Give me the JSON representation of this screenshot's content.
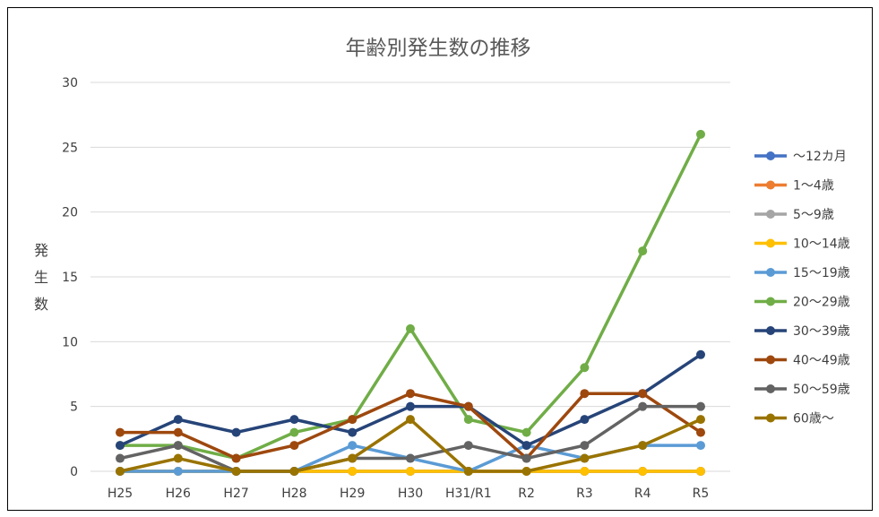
{
  "chart_data": {
    "type": "line",
    "title": "年齢別発生数の推移",
    "ylabel": "発生数",
    "xlabel": "",
    "ylim": [
      0,
      30
    ],
    "yticks": [
      0,
      5,
      10,
      15,
      20,
      25,
      30
    ],
    "grid": true,
    "legend": "right",
    "categories": [
      "H25",
      "H26",
      "H27",
      "H28",
      "H29",
      "H30",
      "H31/R1",
      "R2",
      "R3",
      "R4",
      "R5"
    ],
    "series": [
      {
        "name": "～12カ月",
        "color": "#4472C4",
        "values": [
          0,
          0,
          0,
          0,
          0,
          0,
          0,
          0,
          0,
          0,
          0
        ]
      },
      {
        "name": "1～4歳",
        "color": "#ED7D31",
        "values": [
          0,
          0,
          0,
          0,
          0,
          0,
          0,
          0,
          0,
          0,
          0
        ]
      },
      {
        "name": "5～9歳",
        "color": "#A5A5A5",
        "values": [
          0,
          0,
          0,
          0,
          0,
          0,
          0,
          0,
          0,
          0,
          0
        ]
      },
      {
        "name": "10～14歳",
        "color": "#FFC000",
        "values": [
          0,
          0,
          0,
          0,
          0,
          0,
          0,
          0,
          0,
          0,
          0
        ]
      },
      {
        "name": "15～19歳",
        "color": "#5B9BD5",
        "values": [
          0,
          0,
          0,
          0,
          2,
          1,
          0,
          2,
          1,
          2,
          2
        ]
      },
      {
        "name": "20～29歳",
        "color": "#70AD47",
        "values": [
          2,
          2,
          1,
          3,
          4,
          11,
          4,
          3,
          8,
          17,
          26
        ]
      },
      {
        "name": "30～39歳",
        "color": "#264478",
        "values": [
          2,
          4,
          3,
          4,
          3,
          5,
          5,
          2,
          4,
          6,
          9
        ]
      },
      {
        "name": "40～49歳",
        "color": "#9E480E",
        "values": [
          3,
          3,
          1,
          2,
          4,
          6,
          5,
          1,
          6,
          6,
          3
        ]
      },
      {
        "name": "50～59歳",
        "color": "#636363",
        "values": [
          1,
          2,
          0,
          0,
          1,
          1,
          2,
          1,
          2,
          5,
          5
        ]
      },
      {
        "name": "60歳～",
        "color": "#997300",
        "values": [
          0,
          1,
          0,
          0,
          1,
          4,
          0,
          0,
          1,
          2,
          4
        ]
      }
    ]
  }
}
